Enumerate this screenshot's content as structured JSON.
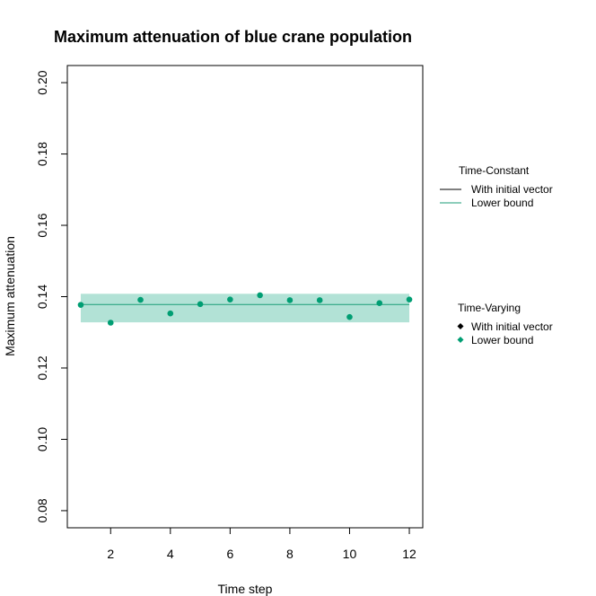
{
  "chart_data": {
    "type": "line",
    "title": "Maximum attenuation of blue crane population",
    "xlabel": "Time step",
    "ylabel": "Maximum attenuation",
    "xlim": [
      0.55,
      12.45
    ],
    "ylim": [
      0.0752,
      0.2048
    ],
    "x_ticks": [
      2,
      4,
      6,
      8,
      10,
      12
    ],
    "y_ticks": [
      0.08,
      0.1,
      0.12,
      0.14,
      0.16,
      0.18,
      0.2
    ],
    "y_tick_labels": [
      "0.08",
      "0.10",
      "0.12",
      "0.14",
      "0.16",
      "0.18",
      "0.20"
    ],
    "grid": false,
    "legend_position": "right",
    "band": {
      "x_start": 1,
      "x_end": 12,
      "lower": 0.1328,
      "upper": 0.1408,
      "color": "#b2e2d6"
    },
    "constant_line": {
      "x_start": 1,
      "x_end": 12,
      "value": 0.1378,
      "color": "#1b9e77"
    },
    "points": {
      "x": [
        1,
        2,
        3,
        4,
        5,
        6,
        7,
        8,
        9,
        10,
        11,
        12
      ],
      "y": [
        0.1377,
        0.1327,
        0.1391,
        0.1353,
        0.1379,
        0.1392,
        0.1404,
        0.139,
        0.139,
        0.1343,
        0.1382,
        0.1392
      ],
      "color": "#009e73"
    },
    "legend": {
      "time_constant": {
        "title": "Time-Constant",
        "items": [
          {
            "label": "With initial vector",
            "color": "#000000"
          },
          {
            "label": "Lower bound",
            "color": "#1b9e77"
          }
        ]
      },
      "time_varying": {
        "title": "Time-Varying",
        "items": [
          {
            "label": "With initial vector",
            "color": "#000000"
          },
          {
            "label": "Lower bound",
            "color": "#009e73"
          }
        ]
      }
    }
  }
}
